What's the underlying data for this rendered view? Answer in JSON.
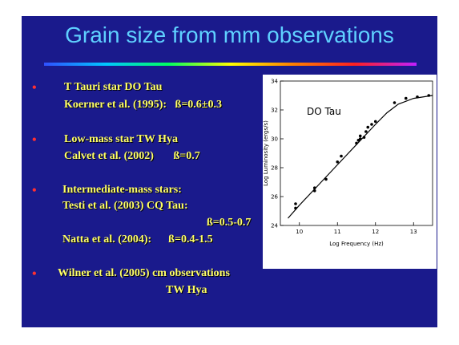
{
  "slide": {
    "title": "Grain size from mm observations",
    "bullets": [
      {
        "lines": [
          "T Tauri star DO Tau",
          "Koerner et al. (1995):   ß=0.6±0.3"
        ]
      },
      {
        "lines": [
          "Low-mass star TW Hya",
          "Calvet et al. (2002)       ß=0.7"
        ]
      },
      {
        "lines": [
          "Intermediate-mass stars:",
          "Testi et al. (2003) CQ Tau:",
          "ß=0.5-0.7",
          "Natta et al. (2004):      ß=0.4-1.5"
        ]
      },
      {
        "lines": [
          "Wilner et al. (2005) cm observations",
          "TW Hya"
        ]
      }
    ],
    "chart_data": {
      "type": "scatter",
      "annotation": "DO Tau",
      "x_label": "Log Frequency (Hz)",
      "y_label": "Log Luminosity (ergs/s)",
      "xlim": [
        9.5,
        13.5
      ],
      "xticks": [
        10,
        11,
        12,
        13
      ],
      "ylim": [
        24,
        34
      ],
      "yticks": [
        24,
        26,
        28,
        30,
        32,
        34
      ],
      "color": "#000000",
      "points": {
        "x": [
          9.9,
          9.9,
          10.4,
          10.4,
          10.7,
          11.0,
          11.1,
          11.5,
          11.55,
          11.6,
          11.6,
          11.7,
          11.75,
          11.8,
          11.9,
          12.0,
          12.5,
          12.8,
          13.1,
          13.4
        ],
        "y": [
          25.2,
          25.5,
          26.4,
          26.6,
          27.2,
          28.4,
          28.8,
          29.7,
          29.9,
          30.0,
          30.2,
          30.1,
          30.5,
          30.8,
          31.0,
          31.2,
          32.5,
          32.8,
          32.9,
          33.0
        ]
      },
      "curve": {
        "x": [
          9.7,
          10,
          10.5,
          11,
          11.5,
          12,
          12.3,
          12.6,
          13,
          13.5
        ],
        "y": [
          24.5,
          25.4,
          26.8,
          28.2,
          29.6,
          31.0,
          31.8,
          32.4,
          32.8,
          33.0
        ]
      }
    }
  }
}
